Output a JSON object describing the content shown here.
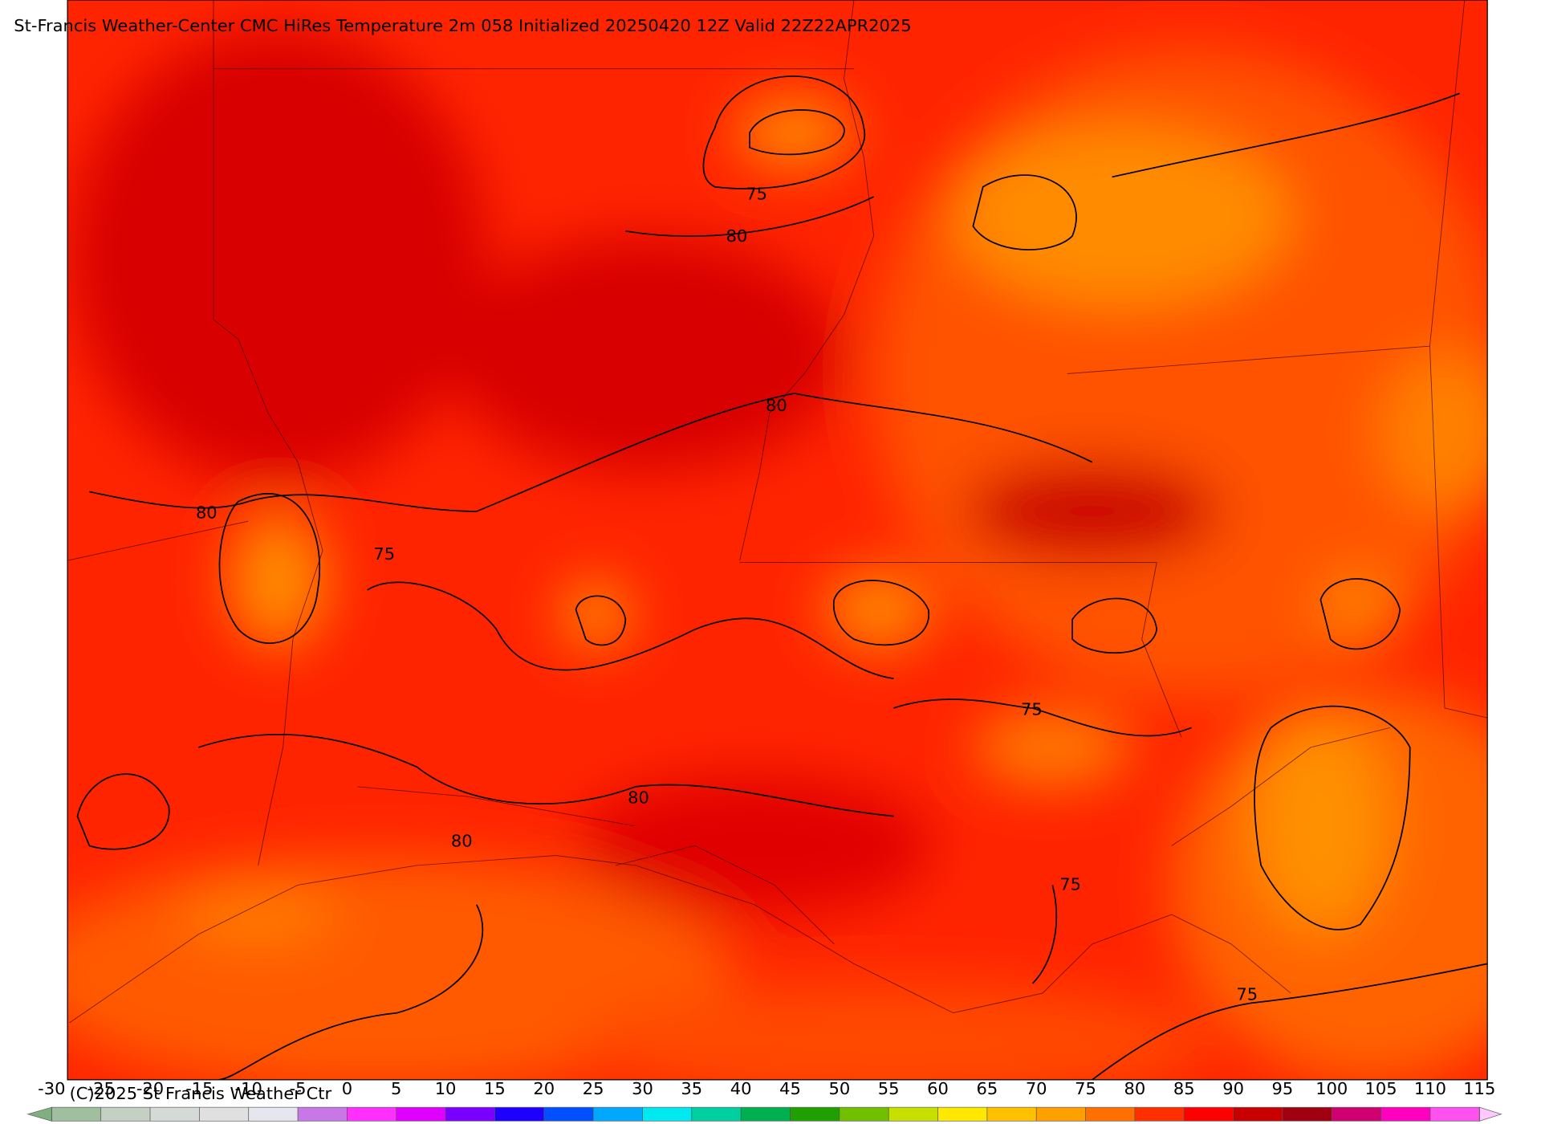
{
  "map": {
    "title": "St-Francis Weather-Center CMC HiRes Temperature 2m  058 Initialized 20250420 12Z Valid 22Z22APR2025",
    "copyright": "(C)2025 St Francis Weather Ctr",
    "contour_labels": [
      75,
      80,
      80,
      80,
      75,
      75,
      80,
      80,
      75,
      75
    ],
    "colorbar": {
      "ticks": [
        -30,
        -25,
        -20,
        -15,
        -10,
        -5,
        0,
        5,
        10,
        15,
        20,
        25,
        30,
        35,
        40,
        45,
        50,
        55,
        60,
        65,
        70,
        75,
        80,
        85,
        90,
        95,
        100,
        105,
        110,
        115
      ],
      "colors": [
        "#9fbf9f",
        "#c4d0c4",
        "#d6dad6",
        "#e0e0e0",
        "#e6e6ee",
        "#c878e6",
        "#ff30ff",
        "#e000ff",
        "#7a00ff",
        "#1e00ff",
        "#0050ff",
        "#00a8ff",
        "#00e8f0",
        "#00d0a0",
        "#00b050",
        "#20a000",
        "#70c000",
        "#c8e000",
        "#ffe800",
        "#ffc000",
        "#ffa000",
        "#ff7000",
        "#ff3000",
        "#ff0000",
        "#c80000",
        "#a00010",
        "#d00070",
        "#ff00c0",
        "#ff50f0"
      ],
      "under_color": "#80b080",
      "over_color": "#ffc8ff"
    }
  }
}
